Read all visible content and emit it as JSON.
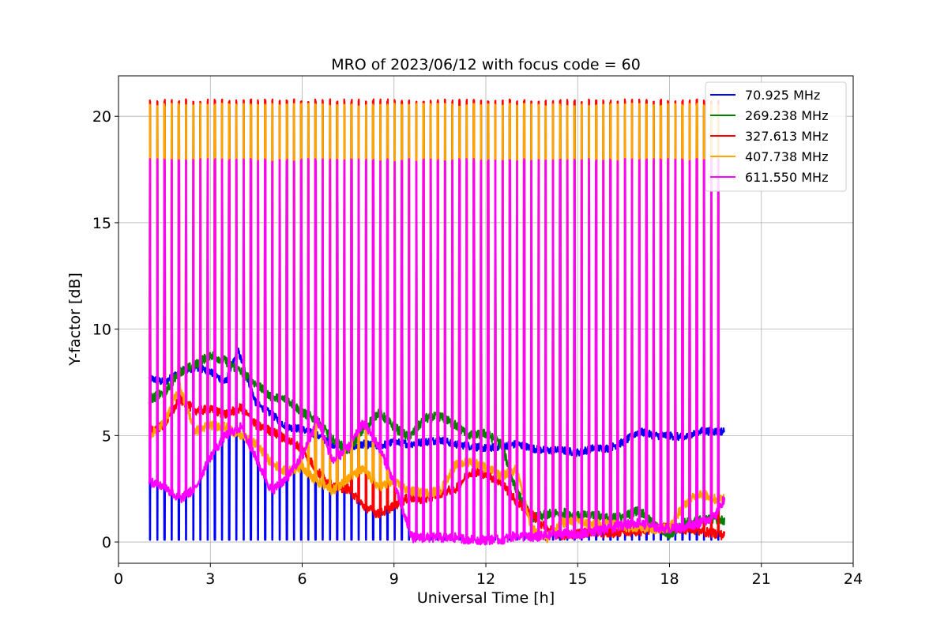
{
  "chart_data": {
    "type": "line",
    "title": "MRO of 2023/06/12 with focus code = 60",
    "xlabel": "Universal Time [h]",
    "ylabel": "Y-factor [dB]",
    "xlim": [
      0,
      24
    ],
    "ylim": [
      -1.0,
      21.9
    ],
    "xticks": [
      0,
      3,
      6,
      9,
      12,
      15,
      18,
      21,
      24
    ],
    "yticks": [
      0,
      5,
      10,
      15,
      20
    ],
    "grid": true,
    "legend_position": "top-right",
    "calibration_spikes": {
      "start_h": 1.0,
      "end_h": 19.8,
      "count": 80,
      "peak_values_db": {
        "70.925 MHz": 0.1,
        "269.238 MHz": 20.5,
        "327.613 MHz": 20.8,
        "407.738 MHz": 20.6,
        "611.550 MHz": 18.0
      }
    },
    "series": [
      {
        "name": "70.925 MHz",
        "color": "#0000ff",
        "x": [
          1.0,
          1.5,
          2.0,
          2.5,
          3.0,
          3.5,
          3.9,
          4.5,
          5.0,
          5.5,
          6.0,
          6.5,
          7.0,
          7.5,
          8.0,
          8.5,
          9.0,
          9.5,
          10.0,
          10.5,
          11.0,
          11.5,
          12.0,
          12.5,
          13.0,
          13.5,
          14.0,
          14.5,
          15.0,
          15.5,
          16.0,
          16.5,
          17.0,
          17.5,
          18.0,
          18.5,
          19.0,
          19.5,
          19.8
        ],
        "y": [
          7.7,
          7.5,
          8.0,
          8.2,
          8.0,
          7.5,
          9.0,
          6.5,
          6.0,
          5.4,
          5.3,
          5.0,
          4.6,
          4.4,
          4.6,
          4.5,
          4.7,
          4.6,
          4.7,
          4.8,
          4.6,
          4.5,
          4.4,
          4.5,
          4.6,
          4.4,
          4.3,
          4.3,
          4.2,
          4.4,
          4.4,
          4.7,
          5.2,
          5.0,
          5.0,
          4.9,
          5.2,
          5.2,
          5.2
        ]
      },
      {
        "name": "269.238 MHz",
        "color": "#008000",
        "x": [
          1.0,
          1.5,
          2.0,
          2.5,
          3.0,
          3.5,
          4.0,
          4.5,
          5.0,
          5.5,
          6.0,
          6.5,
          7.0,
          7.5,
          8.0,
          8.5,
          9.0,
          9.5,
          10.0,
          10.5,
          11.0,
          11.5,
          12.0,
          12.5,
          13.0,
          13.5,
          14.0,
          14.5,
          15.0,
          15.5,
          16.0,
          16.5,
          17.0,
          17.5,
          18.0,
          18.5,
          19.0,
          19.5,
          19.8
        ],
        "y": [
          6.7,
          7.0,
          8.0,
          8.3,
          8.8,
          8.5,
          8.0,
          7.4,
          6.8,
          6.7,
          6.1,
          5.7,
          4.8,
          4.3,
          5.3,
          6.1,
          5.4,
          4.9,
          5.8,
          5.9,
          5.5,
          5.0,
          5.1,
          4.6,
          2.4,
          1.1,
          1.3,
          1.4,
          1.2,
          1.3,
          1.1,
          1.2,
          1.5,
          0.8,
          0.3,
          0.9,
          1.0,
          1.1,
          1.0
        ]
      },
      {
        "name": "327.613 MHz",
        "color": "#ff0000",
        "x": [
          1.0,
          1.5,
          2.0,
          2.5,
          3.0,
          3.5,
          4.0,
          4.5,
          5.0,
          5.5,
          6.0,
          6.5,
          7.0,
          7.5,
          8.0,
          8.5,
          9.0,
          9.5,
          10.0,
          10.5,
          11.0,
          11.5,
          12.0,
          12.5,
          13.0,
          13.5,
          14.0,
          14.5,
          15.0,
          15.5,
          16.0,
          16.5,
          17.0,
          17.5,
          18.0,
          18.5,
          19.0,
          19.5,
          19.8
        ],
        "y": [
          5.2,
          5.5,
          6.7,
          6.2,
          6.2,
          6.0,
          6.3,
          5.5,
          5.2,
          4.8,
          4.4,
          3.3,
          2.6,
          2.5,
          1.7,
          1.3,
          1.7,
          2.1,
          2.0,
          2.3,
          2.5,
          3.3,
          3.2,
          2.8,
          1.9,
          1.3,
          0.6,
          0.3,
          0.4,
          0.5,
          0.4,
          0.5,
          0.5,
          0.6,
          0.7,
          0.6,
          0.5,
          0.4,
          0.3
        ]
      },
      {
        "name": "407.738 MHz",
        "color": "#ffa500",
        "x": [
          1.0,
          1.5,
          2.0,
          2.5,
          3.0,
          3.5,
          4.0,
          4.5,
          5.0,
          5.5,
          6.0,
          6.5,
          7.0,
          7.5,
          8.0,
          8.5,
          9.0,
          9.5,
          10.0,
          10.5,
          11.0,
          11.5,
          12.0,
          12.5,
          13.0,
          13.5,
          14.0,
          14.5,
          15.0,
          15.5,
          16.0,
          16.5,
          17.0,
          17.5,
          18.0,
          18.5,
          19.0,
          19.5,
          19.8
        ],
        "y": [
          5.0,
          5.6,
          7.3,
          5.2,
          5.5,
          5.4,
          5.0,
          4.6,
          3.7,
          3.3,
          3.5,
          2.8,
          2.4,
          3.0,
          3.4,
          2.6,
          2.8,
          2.4,
          2.3,
          2.4,
          3.6,
          3.8,
          3.5,
          3.1,
          3.4,
          0.6,
          0.2,
          0.9,
          1.0,
          0.8,
          0.9,
          0.7,
          0.7,
          0.6,
          0.7,
          1.8,
          2.3,
          2.0,
          2.1
        ]
      },
      {
        "name": "611.550 MHz",
        "color": "#ff00ff",
        "x": [
          1.0,
          1.5,
          2.0,
          2.5,
          3.0,
          3.5,
          4.0,
          4.5,
          5.0,
          5.5,
          6.0,
          6.5,
          7.0,
          7.5,
          8.0,
          8.5,
          9.0,
          9.3,
          9.6,
          10.0,
          10.5,
          11.0,
          11.5,
          12.0,
          12.5,
          13.0,
          13.5,
          14.0,
          14.5,
          15.0,
          15.5,
          16.0,
          16.5,
          17.0,
          17.5,
          18.0,
          18.5,
          19.0,
          19.5,
          19.8
        ],
        "y": [
          2.8,
          2.6,
          2.0,
          2.5,
          4.0,
          5.0,
          5.4,
          3.9,
          2.4,
          3.0,
          4.0,
          5.7,
          3.8,
          4.4,
          5.6,
          4.5,
          2.8,
          1.4,
          0.2,
          0.2,
          0.2,
          0.2,
          0.1,
          0.1,
          0.1,
          0.3,
          0.2,
          0.3,
          0.4,
          0.3,
          0.5,
          0.6,
          0.8,
          0.9,
          0.7,
          0.6,
          0.7,
          0.9,
          1.2,
          2.1
        ]
      }
    ]
  }
}
